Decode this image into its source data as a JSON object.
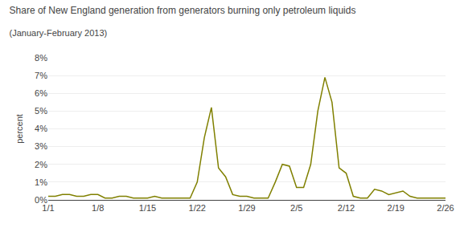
{
  "chart_data": {
    "type": "line",
    "title": "Share of New England generation from generators burning only petroleum liquids",
    "subtitle": "(January-February 2013)",
    "ylabel": "percent",
    "color": "#808000",
    "grid": "y",
    "x": [
      1,
      2,
      3,
      4,
      5,
      6,
      7,
      8,
      9,
      10,
      11,
      12,
      13,
      14,
      15,
      16,
      17,
      18,
      19,
      20,
      21,
      22,
      23,
      24,
      25,
      26,
      27,
      28,
      29,
      30,
      31,
      32,
      33,
      34,
      35,
      36,
      37,
      38,
      39,
      40,
      41,
      42,
      43,
      44,
      45,
      46,
      47,
      48,
      49,
      50,
      51,
      52,
      53,
      54,
      55,
      56,
      57
    ],
    "values": [
      0.002,
      0.002,
      0.003,
      0.003,
      0.002,
      0.002,
      0.003,
      0.003,
      0.001,
      0.001,
      0.002,
      0.002,
      0.001,
      0.001,
      0.001,
      0.002,
      0.001,
      0.001,
      0.001,
      0.001,
      0.001,
      0.01,
      0.035,
      0.052,
      0.018,
      0.013,
      0.003,
      0.002,
      0.002,
      0.001,
      0.001,
      0.001,
      0.01,
      0.02,
      0.019,
      0.007,
      0.007,
      0.02,
      0.05,
      0.069,
      0.055,
      0.018,
      0.015,
      0.002,
      0.001,
      0.001,
      0.006,
      0.005,
      0.003,
      0.004,
      0.005,
      0.002,
      0.001,
      0.001,
      0.001,
      0.001,
      0.001
    ],
    "xlim": [
      1,
      57
    ],
    "xticks": [
      {
        "value": 1,
        "label": "1/1"
      },
      {
        "value": 8,
        "label": "1/8"
      },
      {
        "value": 15,
        "label": "1/15"
      },
      {
        "value": 22,
        "label": "1/22"
      },
      {
        "value": 29,
        "label": "1/29"
      },
      {
        "value": 36,
        "label": "2/5"
      },
      {
        "value": 43,
        "label": "2/12"
      },
      {
        "value": 50,
        "label": "2/19"
      },
      {
        "value": 57,
        "label": "2/26"
      }
    ],
    "ylim": [
      0,
      0.08
    ],
    "yticks": [
      {
        "value": 0.0,
        "label": "0%"
      },
      {
        "value": 0.01,
        "label": "1%"
      },
      {
        "value": 0.02,
        "label": "2%"
      },
      {
        "value": 0.03,
        "label": "3%"
      },
      {
        "value": 0.04,
        "label": "4%"
      },
      {
        "value": 0.05,
        "label": "5%"
      },
      {
        "value": 0.06,
        "label": "6%"
      },
      {
        "value": 0.07,
        "label": "7%"
      },
      {
        "value": 0.08,
        "label": "8%"
      }
    ]
  }
}
